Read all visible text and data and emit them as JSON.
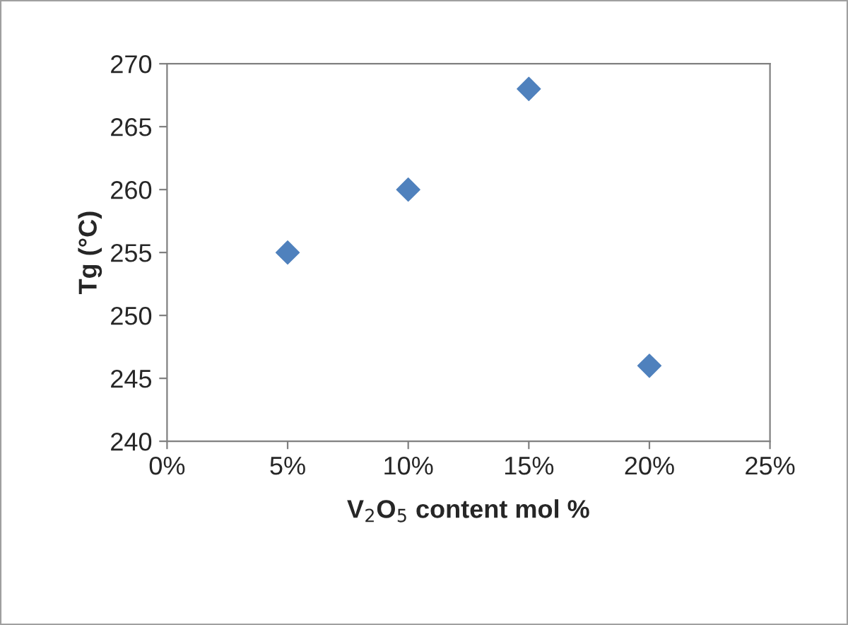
{
  "chart_data": {
    "type": "scatter",
    "x": [
      5,
      10,
      15,
      20
    ],
    "series": [
      {
        "color": "#4f81bd",
        "values": [
          255,
          260,
          268,
          246
        ]
      }
    ],
    "marker": "diamond",
    "xlabel": "V$_{2}$O$_{5}$ content mol %",
    "ylabel": "Tg (°C)",
    "xlim": [
      0,
      25
    ],
    "xticks": [
      {
        "value": 0,
        "label": "0%"
      },
      {
        "value": 5,
        "label": "5%"
      },
      {
        "value": 10,
        "label": "10%"
      },
      {
        "value": 15,
        "label": "15%"
      },
      {
        "value": 20,
        "label": "20%"
      },
      {
        "value": 25,
        "label": "25%"
      }
    ],
    "ylim": [
      240,
      270
    ],
    "yticks": [
      240,
      245,
      250,
      255,
      260,
      265,
      270
    ],
    "grid": false,
    "legend": false
  }
}
